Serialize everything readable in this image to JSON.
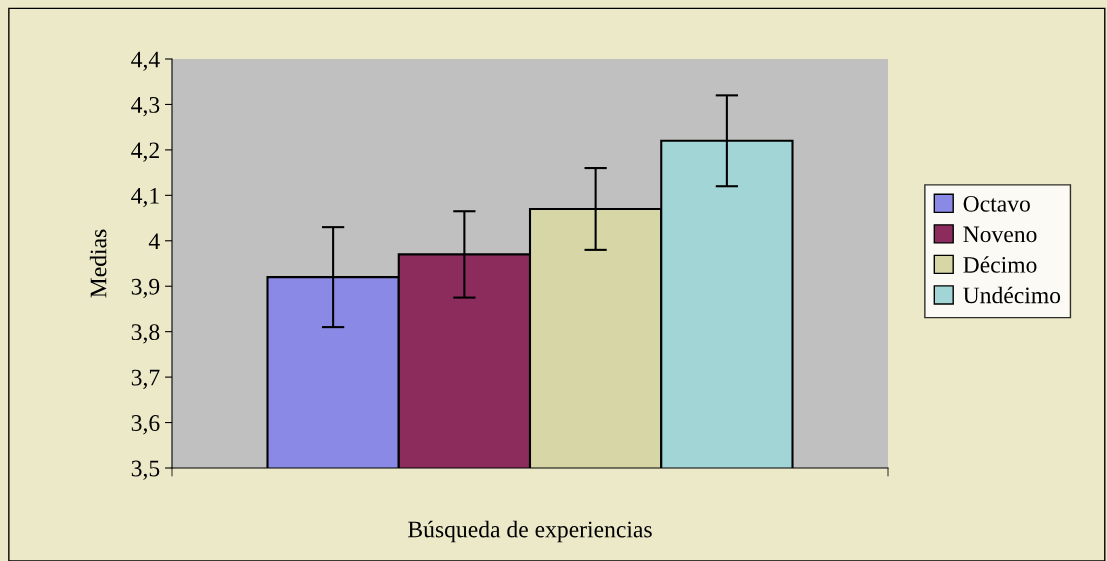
{
  "chart_data": {
    "type": "bar",
    "ylabel": "Medias",
    "categories": [
      "Búsqueda de experiencias"
    ],
    "series": [
      {
        "name": "Octavo",
        "color": "#8a8ae6",
        "values": [
          3.92
        ],
        "errors": [
          0.11
        ]
      },
      {
        "name": "Noveno",
        "color": "#8c2c5c",
        "values": [
          3.97
        ],
        "errors": [
          0.095
        ]
      },
      {
        "name": "Décimo",
        "color": "#d6d6a6",
        "values": [
          4.07
        ],
        "errors": [
          0.09
        ]
      },
      {
        "name": "Undécimo",
        "color": "#a2d6d6",
        "values": [
          4.22
        ],
        "errors": [
          0.1
        ]
      }
    ],
    "ylim": [
      3.5,
      4.4
    ],
    "yticks": [
      {
        "value": 3.5,
        "label": "3,5"
      },
      {
        "value": 3.6,
        "label": "3,6"
      },
      {
        "value": 3.7,
        "label": "3,7"
      },
      {
        "value": 3.8,
        "label": "3,8"
      },
      {
        "value": 3.9,
        "label": "3,9"
      },
      {
        "value": 4,
        "label": "4"
      },
      {
        "value": 4.1,
        "label": "4,1"
      },
      {
        "value": 4.2,
        "label": "4,2"
      },
      {
        "value": 4.3,
        "label": "4,3"
      },
      {
        "value": 4.4,
        "label": "4,4"
      }
    ],
    "grid": false,
    "legend": "right"
  }
}
